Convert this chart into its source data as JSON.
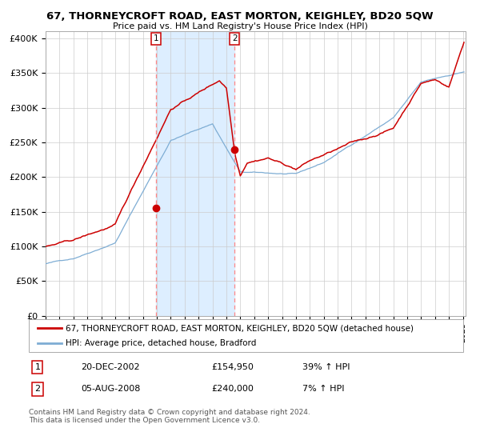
{
  "title": "67, THORNEYCROFT ROAD, EAST MORTON, KEIGHLEY, BD20 5QW",
  "subtitle": "Price paid vs. HM Land Registry's House Price Index (HPI)",
  "legend_line1": "67, THORNEYCROFT ROAD, EAST MORTON, KEIGHLEY, BD20 5QW (detached house)",
  "legend_line2": "HPI: Average price, detached house, Bradford",
  "sale1_date": "20-DEC-2002",
  "sale1_price": 154950,
  "sale1_label": "1",
  "sale1_hpi": "39% ↑ HPI",
  "sale2_date": "05-AUG-2008",
  "sale2_price": 240000,
  "sale2_label": "2",
  "sale2_hpi": "7% ↑ HPI",
  "footer": "Contains HM Land Registry data © Crown copyright and database right 2024.\nThis data is licensed under the Open Government Licence v3.0.",
  "red_color": "#cc0000",
  "blue_color": "#7eadd4",
  "blue_fill": "#ddeeff",
  "dashed_color": "#ff8888",
  "bg_color": "#ffffff",
  "grid_color": "#cccccc",
  "ylim": [
    0,
    410000
  ],
  "yticks": [
    0,
    50000,
    100000,
    150000,
    200000,
    250000,
    300000,
    350000,
    400000
  ],
  "sale1_year": 2002.96,
  "sale2_year": 2008.59,
  "xstart": 1995,
  "xend": 2025.2
}
